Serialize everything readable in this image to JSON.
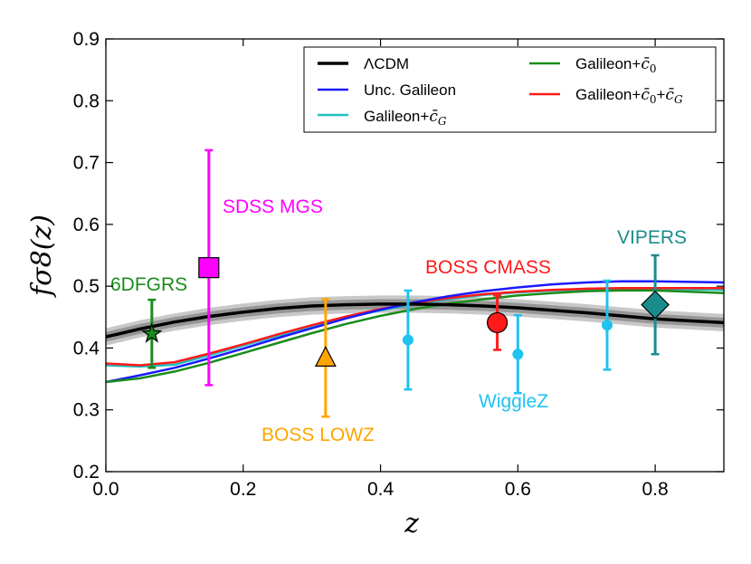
{
  "chart_data": {
    "type": "line",
    "title": "",
    "xlabel": "z",
    "ylabel": "fσ8(z)",
    "xlim": [
      0.0,
      0.9
    ],
    "ylim": [
      0.2,
      0.9
    ],
    "x_ticks": [
      "0.0",
      "0.2",
      "0.4",
      "0.6",
      "0.8"
    ],
    "y_ticks": [
      "0.2",
      "0.3",
      "0.4",
      "0.5",
      "0.6",
      "0.7",
      "0.8",
      "0.9"
    ],
    "grid": false,
    "legend_position": "top-right",
    "lcdm_band": {
      "outer": 0.014,
      "inner": 0.008,
      "colors": {
        "outer": "#c8c8c8",
        "inner": "#969696"
      }
    },
    "series": [
      {
        "name": "ΛCDM",
        "legend_label": "ΛCDM",
        "color": "#000000",
        "width": 3.5,
        "x": [
          0.0,
          0.05,
          0.1,
          0.15,
          0.2,
          0.25,
          0.3,
          0.35,
          0.4,
          0.45,
          0.5,
          0.55,
          0.6,
          0.65,
          0.7,
          0.75,
          0.8,
          0.85,
          0.9
        ],
        "y": [
          0.418,
          0.431,
          0.442,
          0.451,
          0.458,
          0.464,
          0.468,
          0.47,
          0.471,
          0.471,
          0.47,
          0.468,
          0.465,
          0.461,
          0.457,
          0.452,
          0.447,
          0.444,
          0.441
        ]
      },
      {
        "name": "Unc. Galileon",
        "legend_label": "Unc. Galileon",
        "color": "#1a1aff",
        "width": 2.5,
        "x": [
          0.0,
          0.05,
          0.1,
          0.15,
          0.2,
          0.25,
          0.3,
          0.35,
          0.4,
          0.45,
          0.5,
          0.55,
          0.6,
          0.65,
          0.7,
          0.75,
          0.8,
          0.85,
          0.9
        ],
        "y": [
          0.345,
          0.356,
          0.368,
          0.383,
          0.399,
          0.416,
          0.432,
          0.448,
          0.462,
          0.474,
          0.484,
          0.492,
          0.498,
          0.503,
          0.506,
          0.508,
          0.508,
          0.507,
          0.506
        ]
      },
      {
        "name": "Galileon+c̄G",
        "legend_label": "Galileon+",
        "legend_math": "c̄",
        "legend_sub": "G",
        "color": "#1fbfbf",
        "width": 2.5,
        "x": [
          0.0,
          0.05,
          0.1,
          0.15,
          0.2,
          0.25,
          0.3,
          0.35,
          0.4,
          0.45,
          0.5,
          0.55,
          0.6,
          0.65,
          0.7,
          0.75,
          0.8,
          0.85,
          0.9
        ],
        "y": [
          0.372,
          0.37,
          0.373,
          0.388,
          0.404,
          0.42,
          0.435,
          0.449,
          0.461,
          0.471,
          0.479,
          0.486,
          0.49,
          0.493,
          0.495,
          0.496,
          0.496,
          0.495,
          0.494
        ]
      },
      {
        "name": "Galileon+c̄0",
        "legend_label": "Galileon+",
        "legend_math": "c̄",
        "legend_sub": "0",
        "color": "#1a8c1a",
        "width": 2.5,
        "x": [
          0.0,
          0.05,
          0.1,
          0.15,
          0.2,
          0.25,
          0.3,
          0.35,
          0.4,
          0.45,
          0.5,
          0.55,
          0.6,
          0.65,
          0.7,
          0.75,
          0.8,
          0.85,
          0.9
        ],
        "y": [
          0.345,
          0.351,
          0.362,
          0.376,
          0.392,
          0.408,
          0.424,
          0.439,
          0.452,
          0.463,
          0.472,
          0.479,
          0.485,
          0.489,
          0.492,
          0.493,
          0.493,
          0.491,
          0.489
        ]
      },
      {
        "name": "Galileon+c̄0+c̄G",
        "legend_label": "Galileon+",
        "legend_math": "c̄",
        "legend_sub": "0",
        "legend_label2": "+",
        "legend_math2": "c̄",
        "legend_sub2": "G",
        "color": "#ff1a1a",
        "width": 2.5,
        "x": [
          0.0,
          0.05,
          0.1,
          0.15,
          0.2,
          0.25,
          0.3,
          0.35,
          0.4,
          0.45,
          0.5,
          0.55,
          0.6,
          0.65,
          0.7,
          0.75,
          0.8,
          0.85,
          0.9
        ],
        "y": [
          0.375,
          0.372,
          0.377,
          0.391,
          0.406,
          0.422,
          0.437,
          0.451,
          0.463,
          0.473,
          0.481,
          0.487,
          0.491,
          0.494,
          0.496,
          0.497,
          0.497,
          0.497,
          0.497
        ]
      }
    ],
    "measurements": [
      {
        "label": "6DFGRS",
        "z": 0.067,
        "value": 0.423,
        "err": 0.055,
        "marker": "star",
        "color": "#1a8c1a"
      },
      {
        "label": "SDSS MGS",
        "z": 0.15,
        "value": 0.53,
        "err": 0.19,
        "marker": "square",
        "color": "#ff00ff"
      },
      {
        "label": "BOSS LOWZ",
        "z": 0.32,
        "value": 0.384,
        "err": 0.095,
        "marker": "triangle",
        "color": "#ffa500"
      },
      {
        "label": "BOSS CMASS",
        "z": 0.57,
        "value": 0.441,
        "err": 0.044,
        "marker": "circle",
        "color": "#ff1a1a"
      },
      {
        "label": "WiggleZ",
        "z": 0.44,
        "value": 0.413,
        "err": 0.08,
        "marker": "dot",
        "color": "#1ec3f0",
        "group": "WiggleZ"
      },
      {
        "label": "WiggleZ",
        "z": 0.6,
        "value": 0.39,
        "err": 0.063,
        "marker": "dot",
        "color": "#1ec3f0",
        "group": "WiggleZ"
      },
      {
        "label": "WiggleZ",
        "z": 0.73,
        "value": 0.437,
        "err": 0.072,
        "marker": "dot",
        "color": "#1ec3f0",
        "group": "WiggleZ"
      },
      {
        "label": "VIPERS",
        "z": 0.8,
        "value": 0.47,
        "err": 0.08,
        "marker": "diamond",
        "color": "#1a8c8c"
      }
    ],
    "annotations": [
      {
        "text": "SDSS MGS",
        "color": "#ff00ff"
      },
      {
        "text": "6DFGRS",
        "color": "#1a8c1a"
      },
      {
        "text": "BOSS CMASS",
        "color": "#ff1a1a"
      },
      {
        "text": "VIPERS",
        "color": "#1a8c8c"
      },
      {
        "text": "WiggleZ",
        "color": "#1ec3f0"
      },
      {
        "text": "BOSS LOWZ",
        "color": "#ffa500"
      }
    ]
  }
}
